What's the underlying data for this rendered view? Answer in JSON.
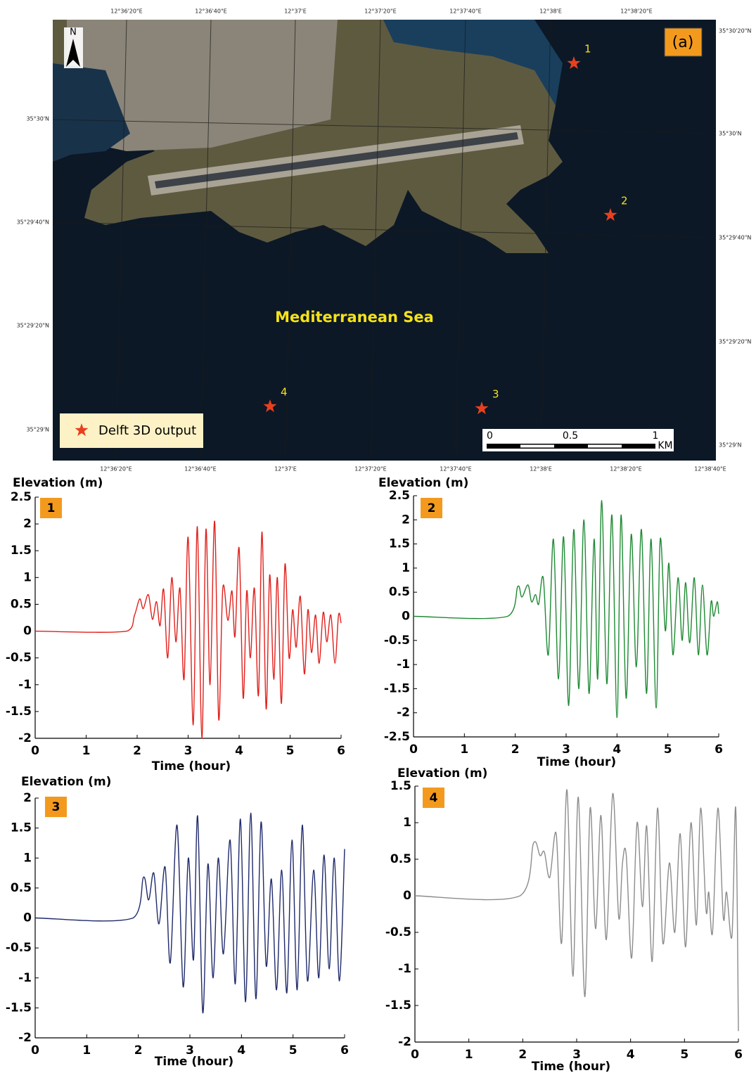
{
  "map": {
    "panel_label": "(a)",
    "sea_label": "Mediterranean Sea",
    "legend": "Delft 3D output",
    "north": "N",
    "stations": [
      "1",
      "2",
      "3",
      "4"
    ],
    "scale_labels": [
      "0",
      "0.5",
      "1",
      "KM"
    ],
    "top_lon_labels": [
      "12°36'20\"E",
      "12°36'40\"E",
      "12°37'E",
      "12°37'20\"E",
      "12°37'40\"E",
      "12°38'E",
      "12°38'20\"E"
    ],
    "bottom_lon_labels": [
      "12°36'20\"E",
      "12°36'40\"E",
      "12°37'E",
      "12°37'20\"E",
      "12°37'40\"E",
      "12°38'E",
      "12°38'20\"E",
      "12°38'40\"E"
    ],
    "left_lat_labels": [
      "35°30'N",
      "35°29'40\"N",
      "35°29'20\"N",
      "35°29'N"
    ],
    "right_lat_labels": [
      "35°30'20\"N",
      "35°30'N",
      "35°29'40\"N",
      "35°29'20\"N",
      "35°29'N"
    ]
  },
  "chart_data": [
    {
      "type": "line",
      "label": "1",
      "ylabel": "Elevation (m)",
      "xlabel": "Time (hour)",
      "color": "#e0201b",
      "xlim": [
        0,
        6
      ],
      "ylim": [
        -2,
        2.5
      ],
      "xticks": [
        0,
        1,
        2,
        3,
        4,
        5,
        6
      ],
      "yticks": [
        -2,
        -1.5,
        -1,
        -0.5,
        0,
        0.5,
        1,
        1.5,
        2,
        2.5
      ],
      "x": [
        0,
        1.8,
        1.95,
        2.05,
        2.12,
        2.22,
        2.3,
        2.38,
        2.45,
        2.52,
        2.6,
        2.68,
        2.76,
        2.84,
        2.92,
        3.0,
        3.1,
        3.18,
        3.27,
        3.35,
        3.43,
        3.52,
        3.6,
        3.68,
        3.78,
        3.86,
        3.92,
        4.0,
        4.08,
        4.15,
        4.22,
        4.3,
        4.38,
        4.45,
        4.53,
        4.6,
        4.68,
        4.75,
        4.83,
        4.9,
        4.98,
        5.05,
        5.12,
        5.2,
        5.28,
        5.35,
        5.42,
        5.5,
        5.57,
        5.65,
        5.72,
        5.8,
        5.88,
        5.95,
        6.0
      ],
      "values": [
        0,
        0,
        0.3,
        0.6,
        0.42,
        0.68,
        0.22,
        0.55,
        0.1,
        0.78,
        -0.5,
        1.0,
        -0.2,
        0.8,
        -0.9,
        1.75,
        -1.75,
        1.95,
        -2.0,
        1.9,
        -1.0,
        2.05,
        -1.65,
        0.8,
        0.2,
        0.75,
        -0.1,
        1.55,
        -1.25,
        0.75,
        -0.5,
        0.8,
        -1.2,
        1.85,
        -1.45,
        1.05,
        -0.9,
        1.0,
        -1.35,
        1.25,
        -0.5,
        0.4,
        -0.3,
        0.65,
        -0.8,
        0.4,
        -0.4,
        0.3,
        -0.6,
        0.35,
        -0.2,
        0.3,
        -0.6,
        0.3,
        0.15
      ]
    },
    {
      "type": "line",
      "label": "2",
      "ylabel": "Elevation (m)",
      "xlabel": "Time (hour)",
      "color": "#1e8a33",
      "xlim": [
        0,
        6
      ],
      "ylim": [
        -2.5,
        2.5
      ],
      "xticks": [
        0,
        1,
        2,
        3,
        4,
        5,
        6
      ],
      "yticks": [
        -2.5,
        -2,
        -1.5,
        -1,
        -0.5,
        0,
        0.5,
        1,
        1.5,
        2,
        2.5
      ],
      "x": [
        0,
        1.85,
        2.05,
        2.13,
        2.25,
        2.32,
        2.4,
        2.46,
        2.55,
        2.65,
        2.75,
        2.85,
        2.95,
        3.05,
        3.15,
        3.25,
        3.35,
        3.45,
        3.55,
        3.62,
        3.7,
        3.8,
        3.9,
        4.0,
        4.08,
        4.18,
        4.28,
        4.38,
        4.48,
        4.58,
        4.67,
        4.77,
        4.85,
        4.95,
        5.02,
        5.1,
        5.2,
        5.28,
        5.35,
        5.43,
        5.52,
        5.6,
        5.68,
        5.77,
        5.85,
        5.9,
        5.97,
        6.0
      ],
      "values": [
        0,
        0,
        0.62,
        0.4,
        0.65,
        0.3,
        0.45,
        0.25,
        0.8,
        -0.8,
        1.6,
        -1.3,
        1.65,
        -1.85,
        1.8,
        -1.5,
        2.0,
        -1.6,
        1.6,
        -1.3,
        2.4,
        -1.4,
        2.1,
        -2.1,
        2.1,
        -1.7,
        1.7,
        -1.05,
        1.8,
        -1.6,
        1.6,
        -1.9,
        1.6,
        -0.3,
        1.1,
        -0.8,
        0.8,
        -0.5,
        0.7,
        -0.55,
        0.8,
        -0.8,
        0.65,
        -0.8,
        0.3,
        0,
        0.3,
        0.05
      ]
    },
    {
      "type": "line",
      "label": "3",
      "ylabel": "Elevation (m)",
      "xlabel": "Time (hour)",
      "color": "#1f2a6b",
      "xlim": [
        0,
        6
      ],
      "ylim": [
        -2,
        2
      ],
      "xticks": [
        0,
        1,
        2,
        3,
        4,
        5,
        6
      ],
      "yticks": [
        -2,
        -1.5,
        -1,
        -0.5,
        0,
        0.5,
        1,
        1.5,
        2
      ],
      "x": [
        0,
        1.9,
        2.1,
        2.2,
        2.3,
        2.4,
        2.52,
        2.62,
        2.75,
        2.87,
        2.97,
        3.07,
        3.15,
        3.25,
        3.35,
        3.45,
        3.55,
        3.65,
        3.78,
        3.88,
        3.98,
        4.08,
        4.18,
        4.28,
        4.38,
        4.48,
        4.58,
        4.68,
        4.78,
        4.88,
        4.98,
        5.08,
        5.18,
        5.28,
        5.4,
        5.5,
        5.6,
        5.7,
        5.8,
        5.9,
        6.0
      ],
      "values": [
        0,
        0,
        0.68,
        0.3,
        0.75,
        -0.1,
        0.85,
        -0.75,
        1.55,
        -1.15,
        1.0,
        -0.7,
        1.7,
        -1.58,
        0.9,
        -1.0,
        1.0,
        -0.6,
        1.3,
        -1.1,
        1.65,
        -1.4,
        1.75,
        -1.35,
        1.6,
        -0.8,
        0.65,
        -1.2,
        0.8,
        -1.25,
        1.3,
        -1.2,
        1.55,
        -1.05,
        0.8,
        -1.0,
        1.05,
        -0.85,
        1.0,
        -1.05,
        1.15
      ]
    },
    {
      "type": "line",
      "label": "4",
      "ylabel": "Elevation (m)",
      "xlabel": "Time (hour)",
      "color": "#8c8c8c",
      "xlim": [
        0,
        6
      ],
      "ylim": [
        -2,
        1.5
      ],
      "xticks": [
        0,
        1,
        2,
        3,
        4,
        5,
        6
      ],
      "yticks": [
        -2,
        -1.5,
        -1,
        -0.5,
        0,
        0.5,
        1,
        1.5
      ],
      "x": [
        0,
        1.95,
        2.2,
        2.32,
        2.4,
        2.5,
        2.62,
        2.72,
        2.82,
        2.93,
        3.03,
        3.15,
        3.25,
        3.35,
        3.45,
        3.55,
        3.67,
        3.78,
        3.85,
        3.92,
        4.02,
        4.12,
        4.22,
        4.3,
        4.4,
        4.5,
        4.6,
        4.72,
        4.82,
        4.92,
        5.02,
        5.12,
        5.22,
        5.3,
        5.4,
        5.45,
        5.52,
        5.62,
        5.72,
        5.78,
        5.88,
        5.95,
        6.0
      ],
      "values": [
        0,
        0,
        0.72,
        0.55,
        0.6,
        0.25,
        0.85,
        -0.65,
        1.45,
        -1.1,
        1.35,
        -1.38,
        1.2,
        -0.45,
        1.1,
        -0.6,
        1.4,
        -0.3,
        0.45,
        0.55,
        -0.85,
        1.0,
        -0.15,
        0.95,
        -0.9,
        1.2,
        -0.65,
        0.45,
        -0.5,
        0.85,
        -0.7,
        1.0,
        -0.4,
        1.2,
        -0.2,
        0.05,
        -0.5,
        1.2,
        -0.3,
        0.05,
        -0.55,
        1.2,
        -1.85
      ]
    }
  ]
}
